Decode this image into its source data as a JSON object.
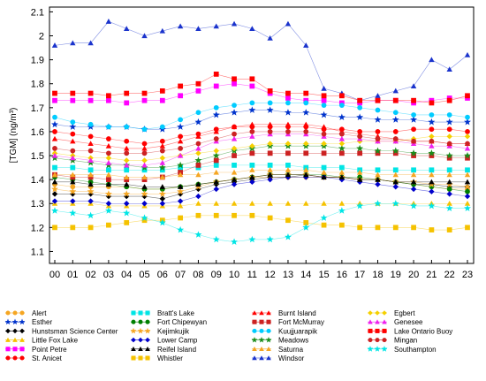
{
  "chart_data": {
    "type": "line",
    "ylabel": "[TGM] (ng/m³)",
    "xlabel": "",
    "ylim": [
      1.05,
      2.12
    ],
    "yticks": [
      "1.1",
      "1.2",
      "1.3",
      "1.4",
      "1.5",
      "1.6",
      "1.7",
      "1.8",
      "1.9",
      "2",
      "2.1"
    ],
    "categories": [
      "00",
      "01",
      "02",
      "03",
      "04",
      "05",
      "06",
      "07",
      "08",
      "09",
      "10",
      "11",
      "12",
      "13",
      "14",
      "15",
      "16",
      "17",
      "18",
      "19",
      "20",
      "21",
      "22",
      "23"
    ],
    "grid": false,
    "legend_position": "bottom",
    "series": [
      {
        "name": "Alert",
        "color": "#F5A623",
        "marker": "circle",
        "values": [
          1.38,
          1.37,
          1.37,
          1.37,
          1.37,
          1.36,
          1.36,
          1.37,
          1.38,
          1.39,
          1.4,
          1.41,
          1.41,
          1.41,
          1.41,
          1.41,
          1.41,
          1.4,
          1.4,
          1.39,
          1.38,
          1.37,
          1.36,
          1.36
        ]
      },
      {
        "name": "Esther",
        "color": "#0033CC",
        "marker": "star",
        "values": [
          1.63,
          1.62,
          1.62,
          1.62,
          1.62,
          1.61,
          1.61,
          1.62,
          1.64,
          1.67,
          1.68,
          1.69,
          1.69,
          1.68,
          1.68,
          1.67,
          1.66,
          1.66,
          1.65,
          1.65,
          1.65,
          1.64,
          1.64,
          1.64
        ]
      },
      {
        "name": "Hunstsman Science Center",
        "color": "#000000",
        "marker": "diamond",
        "values": [
          1.34,
          1.34,
          1.34,
          1.33,
          1.33,
          1.33,
          1.32,
          1.34,
          1.36,
          1.38,
          1.39,
          1.4,
          1.41,
          1.41,
          1.42,
          1.41,
          1.41,
          1.4,
          1.4,
          1.39,
          1.38,
          1.38,
          1.37,
          1.37
        ]
      },
      {
        "name": "Little Fox Lake",
        "color": "#F5C200",
        "marker": "triangle",
        "values": [
          1.3,
          1.3,
          1.3,
          1.29,
          1.29,
          1.29,
          1.29,
          1.29,
          1.3,
          1.3,
          1.3,
          1.3,
          1.3,
          1.3,
          1.3,
          1.3,
          1.3,
          1.3,
          1.3,
          1.3,
          1.3,
          1.3,
          1.3,
          1.3
        ]
      },
      {
        "name": "Point Petre",
        "color": "#FF00FF",
        "marker": "square",
        "values": [
          1.73,
          1.73,
          1.73,
          1.73,
          1.72,
          1.73,
          1.73,
          1.75,
          1.77,
          1.79,
          1.8,
          1.79,
          1.76,
          1.74,
          1.73,
          1.73,
          1.72,
          1.72,
          1.73,
          1.73,
          1.72,
          1.73,
          1.74,
          1.74
        ]
      },
      {
        "name": "St. Anicet",
        "color": "#FF0000",
        "marker": "circle",
        "values": [
          1.6,
          1.59,
          1.58,
          1.57,
          1.56,
          1.55,
          1.56,
          1.58,
          1.59,
          1.61,
          1.62,
          1.62,
          1.62,
          1.62,
          1.62,
          1.61,
          1.61,
          1.6,
          1.6,
          1.6,
          1.61,
          1.61,
          1.61,
          1.6
        ]
      },
      {
        "name": "Bratt's Lake",
        "color": "#00E5E5",
        "marker": "square",
        "values": [
          1.45,
          1.45,
          1.44,
          1.44,
          1.44,
          1.44,
          1.44,
          1.45,
          1.45,
          1.46,
          1.46,
          1.46,
          1.46,
          1.46,
          1.45,
          1.45,
          1.45,
          1.44,
          1.44,
          1.44,
          1.44,
          1.44,
          1.44,
          1.44
        ]
      },
      {
        "name": "Fort Chipewyan",
        "color": "#008000",
        "marker": "circle",
        "values": [
          1.41,
          1.4,
          1.39,
          1.38,
          1.37,
          1.36,
          1.36,
          1.37,
          1.38,
          1.39,
          1.4,
          1.41,
          1.42,
          1.42,
          1.42,
          1.42,
          1.41,
          1.41,
          1.4,
          1.39,
          1.38,
          1.37,
          1.36,
          1.35
        ]
      },
      {
        "name": "Kejimkujik",
        "color": "#F5A623",
        "marker": "star",
        "values": [
          1.36,
          1.35,
          1.35,
          1.34,
          1.34,
          1.34,
          1.34,
          1.35,
          1.37,
          1.39,
          1.4,
          1.41,
          1.42,
          1.42,
          1.42,
          1.41,
          1.41,
          1.4,
          1.4,
          1.39,
          1.39,
          1.38,
          1.38,
          1.37
        ]
      },
      {
        "name": "Lower Camp",
        "color": "#0000CC",
        "marker": "diamond",
        "values": [
          1.31,
          1.31,
          1.31,
          1.3,
          1.3,
          1.3,
          1.3,
          1.31,
          1.33,
          1.36,
          1.38,
          1.39,
          1.4,
          1.41,
          1.41,
          1.41,
          1.4,
          1.39,
          1.38,
          1.37,
          1.36,
          1.35,
          1.34,
          1.33
        ]
      },
      {
        "name": "Reifel Island",
        "color": "#000000",
        "marker": "triangle",
        "values": [
          1.39,
          1.39,
          1.38,
          1.38,
          1.38,
          1.37,
          1.37,
          1.37,
          1.38,
          1.39,
          1.4,
          1.41,
          1.42,
          1.42,
          1.42,
          1.41,
          1.41,
          1.4,
          1.4,
          1.39,
          1.39,
          1.39,
          1.39,
          1.39
        ]
      },
      {
        "name": "Whistler",
        "color": "#F5C200",
        "marker": "square",
        "values": [
          1.2,
          1.2,
          1.2,
          1.21,
          1.22,
          1.23,
          1.23,
          1.24,
          1.25,
          1.25,
          1.25,
          1.25,
          1.24,
          1.23,
          1.22,
          1.21,
          1.21,
          1.2,
          1.2,
          1.2,
          1.2,
          1.19,
          1.19,
          1.2
        ]
      },
      {
        "name": "Burnt Island",
        "color": "#FF0000",
        "marker": "triangle",
        "values": [
          1.57,
          1.56,
          1.55,
          1.54,
          1.53,
          1.53,
          1.54,
          1.56,
          1.58,
          1.6,
          1.62,
          1.63,
          1.63,
          1.63,
          1.63,
          1.62,
          1.6,
          1.59,
          1.58,
          1.57,
          1.56,
          1.56,
          1.55,
          1.55
        ]
      },
      {
        "name": "Fort McMurray",
        "color": "#CC2222",
        "marker": "square",
        "values": [
          1.42,
          1.41,
          1.41,
          1.4,
          1.4,
          1.4,
          1.41,
          1.43,
          1.46,
          1.48,
          1.5,
          1.51,
          1.51,
          1.51,
          1.51,
          1.51,
          1.51,
          1.51,
          1.51,
          1.51,
          1.5,
          1.5,
          1.49,
          1.49
        ]
      },
      {
        "name": "Kuujjuarapik",
        "color": "#00CCFF",
        "marker": "circle",
        "values": [
          1.66,
          1.64,
          1.63,
          1.62,
          1.62,
          1.61,
          1.62,
          1.65,
          1.68,
          1.7,
          1.71,
          1.72,
          1.72,
          1.72,
          1.72,
          1.71,
          1.71,
          1.7,
          1.69,
          1.68,
          1.67,
          1.67,
          1.67,
          1.66
        ]
      },
      {
        "name": "Meadows",
        "color": "#1A8C1A",
        "marker": "star",
        "values": [
          1.49,
          1.48,
          1.47,
          1.46,
          1.46,
          1.45,
          1.45,
          1.46,
          1.48,
          1.5,
          1.52,
          1.53,
          1.54,
          1.54,
          1.54,
          1.54,
          1.53,
          1.53,
          1.52,
          1.52,
          1.51,
          1.51,
          1.5,
          1.5
        ]
      },
      {
        "name": "Saturna",
        "color": "#F5A623",
        "marker": "triangle",
        "values": [
          1.42,
          1.42,
          1.42,
          1.42,
          1.41,
          1.41,
          1.41,
          1.42,
          1.42,
          1.43,
          1.43,
          1.44,
          1.44,
          1.44,
          1.44,
          1.43,
          1.43,
          1.43,
          1.42,
          1.42,
          1.42,
          1.42,
          1.42,
          1.42
        ]
      },
      {
        "name": "Windsor",
        "color": "#1A33CC",
        "marker": "triangle",
        "values": [
          1.96,
          1.97,
          1.97,
          2.06,
          2.03,
          2.0,
          2.02,
          2.04,
          2.03,
          2.04,
          2.05,
          2.03,
          1.99,
          2.05,
          1.96,
          1.78,
          1.76,
          1.73,
          1.75,
          1.77,
          1.79,
          1.9,
          1.86,
          1.92
        ]
      },
      {
        "name": "Egbert",
        "color": "#F5D000",
        "marker": "diamond",
        "values": [
          1.51,
          1.5,
          1.49,
          1.49,
          1.48,
          1.48,
          1.49,
          1.5,
          1.51,
          1.52,
          1.53,
          1.54,
          1.55,
          1.55,
          1.55,
          1.55,
          1.55,
          1.56,
          1.56,
          1.56,
          1.57,
          1.58,
          1.58,
          1.58
        ]
      },
      {
        "name": "Genesee",
        "color": "#EE22EE",
        "marker": "triangle",
        "values": [
          1.5,
          1.49,
          1.48,
          1.47,
          1.46,
          1.46,
          1.47,
          1.5,
          1.53,
          1.56,
          1.57,
          1.58,
          1.59,
          1.59,
          1.59,
          1.58,
          1.57,
          1.57,
          1.56,
          1.56,
          1.55,
          1.54,
          1.54,
          1.53
        ]
      },
      {
        "name": "Lake Ontario Buoy",
        "color": "#FF0000",
        "marker": "square",
        "values": [
          1.76,
          1.76,
          1.76,
          1.75,
          1.76,
          1.76,
          1.77,
          1.79,
          1.8,
          1.84,
          1.82,
          1.82,
          1.77,
          1.76,
          1.76,
          1.75,
          1.75,
          1.73,
          1.73,
          1.73,
          1.73,
          1.72,
          1.73,
          1.75
        ]
      },
      {
        "name": "Mingan",
        "color": "#CC2222",
        "marker": "circle",
        "values": [
          1.53,
          1.52,
          1.52,
          1.51,
          1.51,
          1.51,
          1.52,
          1.53,
          1.55,
          1.57,
          1.59,
          1.6,
          1.6,
          1.6,
          1.6,
          1.59,
          1.59,
          1.58,
          1.57,
          1.57,
          1.56,
          1.56,
          1.55,
          1.55
        ]
      },
      {
        "name": "Southampton",
        "color": "#00E5E5",
        "marker": "star",
        "values": [
          1.27,
          1.26,
          1.25,
          1.27,
          1.26,
          1.24,
          1.22,
          1.19,
          1.17,
          1.15,
          1.14,
          1.15,
          1.15,
          1.16,
          1.2,
          1.24,
          1.27,
          1.29,
          1.3,
          1.3,
          1.29,
          1.29,
          1.28,
          1.28
        ]
      }
    ]
  }
}
